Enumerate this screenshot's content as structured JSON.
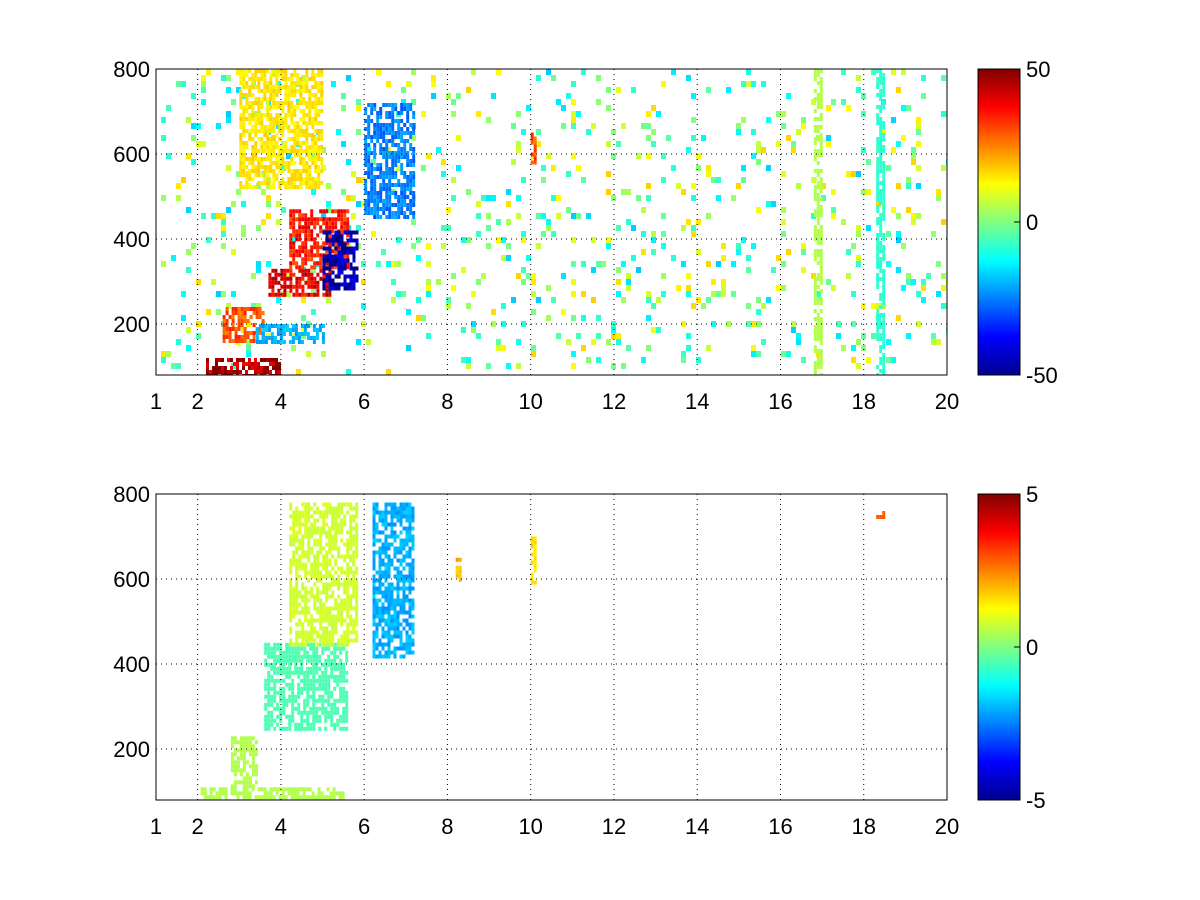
{
  "chart_data": [
    {
      "type": "heatmap",
      "title": "",
      "xlabel": "",
      "ylabel": "",
      "xlim": [
        1,
        20
      ],
      "ylim": [
        80,
        800
      ],
      "x_ticks": [
        "1",
        "2",
        "4",
        "6",
        "8",
        "10",
        "12",
        "14",
        "16",
        "18",
        "20"
      ],
      "y_ticks": [
        "200",
        "400",
        "600",
        "800"
      ],
      "grid": true,
      "colormap": "jet",
      "clim": [
        -50,
        50
      ],
      "colorbar_ticks": [
        "-50",
        "0",
        "50"
      ],
      "features": [
        {
          "x": [
            2.2,
            4.0
          ],
          "y": [
            80,
            120
          ],
          "value": 45
        },
        {
          "x": [
            2.6,
            3.6
          ],
          "y": [
            160,
            240
          ],
          "value": 30
        },
        {
          "x": [
            3.7,
            5.2
          ],
          "y": [
            270,
            330
          ],
          "value": 40
        },
        {
          "x": [
            4.2,
            5.6
          ],
          "y": [
            330,
            470
          ],
          "value": 35
        },
        {
          "x": [
            5.0,
            5.8
          ],
          "y": [
            280,
            420
          ],
          "value": -45
        },
        {
          "x": [
            3.4,
            5.0
          ],
          "y": [
            160,
            200
          ],
          "value": -20
        },
        {
          "x": [
            3.0,
            5.0
          ],
          "y": [
            520,
            800
          ],
          "value": 15
        },
        {
          "x": [
            6.0,
            7.2
          ],
          "y": [
            450,
            720
          ],
          "value": -25
        },
        {
          "x": [
            10.0,
            10.1
          ],
          "y": [
            580,
            660
          ],
          "value": 30
        },
        {
          "x": [
            18.3,
            18.5
          ],
          "y": [
            80,
            800
          ],
          "value": -8
        },
        {
          "x": [
            16.8,
            17.0
          ],
          "y": [
            80,
            800
          ],
          "value": 5
        }
      ]
    },
    {
      "type": "heatmap",
      "title": "",
      "xlabel": "",
      "ylabel": "",
      "xlim": [
        1,
        20
      ],
      "ylim": [
        80,
        800
      ],
      "x_ticks": [
        "1",
        "2",
        "4",
        "6",
        "8",
        "10",
        "12",
        "14",
        "16",
        "18",
        "20"
      ],
      "y_ticks": [
        "200",
        "400",
        "600",
        "800"
      ],
      "grid": true,
      "colormap": "jet",
      "clim": [
        -5,
        5
      ],
      "colorbar_ticks": [
        "-5",
        "0",
        "5"
      ],
      "features": [
        {
          "x": [
            2.0,
            5.5
          ],
          "y": [
            80,
            110
          ],
          "value": 0.5
        },
        {
          "x": [
            2.8,
            3.4
          ],
          "y": [
            110,
            230
          ],
          "value": 0.5
        },
        {
          "x": [
            3.6,
            5.6
          ],
          "y": [
            250,
            450
          ],
          "value": -0.5
        },
        {
          "x": [
            4.2,
            5.8
          ],
          "y": [
            450,
            780
          ],
          "value": 0.8
        },
        {
          "x": [
            6.2,
            7.2
          ],
          "y": [
            420,
            780
          ],
          "value": -2.0
        },
        {
          "x": [
            8.2,
            8.3
          ],
          "y": [
            600,
            650
          ],
          "value": 2.0
        },
        {
          "x": [
            10.0,
            10.1
          ],
          "y": [
            580,
            700
          ],
          "value": 1.5
        },
        {
          "x": [
            18.3,
            18.5
          ],
          "y": [
            750,
            760
          ],
          "value": 3.0
        }
      ]
    }
  ]
}
